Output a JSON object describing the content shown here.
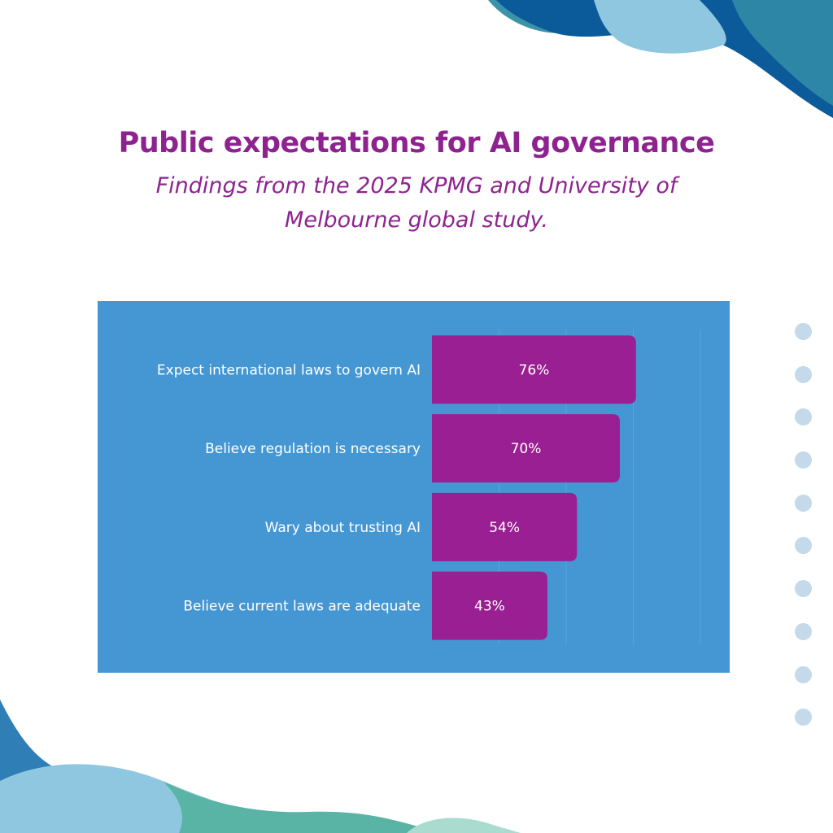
{
  "header": {
    "title": "Public expectations for AI governance",
    "subtitle": "Findings from the 2025 KPMG and University of Melbourne global study."
  },
  "colors": {
    "title": "#8e2390",
    "panel": "#4497d3",
    "bar": "#9a1f92",
    "label_text": "#ffffff",
    "wave_dark": "#0b5a99",
    "wave_light": "#8ec7df",
    "wave_teal": "#3a9aa6",
    "dots": "#c4d9ea"
  },
  "chart_data": {
    "type": "bar",
    "orientation": "horizontal",
    "categories": [
      "Expect international laws to govern AI",
      "Believe regulation is necessary",
      "Wary about trusting AI",
      "Believe current laws are adequate"
    ],
    "values": [
      76,
      70,
      54,
      43
    ],
    "data_labels": [
      "76%",
      "70%",
      "54%",
      "43%"
    ],
    "xlim": [
      0,
      100
    ],
    "grid": true,
    "unit": "%"
  }
}
